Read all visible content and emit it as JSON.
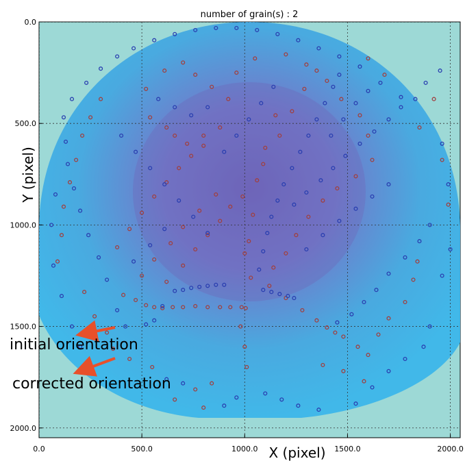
{
  "chart_data": {
    "type": "scatter",
    "title": "number of grain(s) : 2",
    "xlabel": "X (pixel)",
    "ylabel": "Y (pixel)",
    "xlim": [
      0,
      2048
    ],
    "ylim": [
      2048,
      0
    ],
    "grid": true,
    "x_ticks": [
      "0.0",
      "500.0",
      "1000.0",
      "1500.0",
      "2000.0"
    ],
    "y_ticks": [
      "0.0",
      "500.0",
      "1000.0",
      "1500.0",
      "2000.0"
    ],
    "background_image": "detector diffraction image (blue/purple intensity)",
    "marker": "open circle",
    "series": [
      {
        "color": "#a04040",
        "points": [
          [
            410,
            1345
          ],
          [
            470,
            1370
          ],
          [
            520,
            1395
          ],
          [
            560,
            1405
          ],
          [
            600,
            1410
          ],
          [
            650,
            1405
          ],
          [
            700,
            1405
          ],
          [
            760,
            1400
          ],
          [
            820,
            1405
          ],
          [
            880,
            1405
          ],
          [
            930,
            1405
          ],
          [
            985,
            1405
          ],
          [
            1005,
            1410
          ],
          [
            1000,
            1140
          ],
          [
            1020,
            1080
          ],
          [
            1040,
            950
          ],
          [
            1060,
            780
          ],
          [
            1100,
            620
          ],
          [
            1150,
            460
          ],
          [
            880,
            520
          ],
          [
            800,
            560
          ],
          [
            720,
            600
          ],
          [
            660,
            560
          ],
          [
            620,
            520
          ],
          [
            540,
            470
          ],
          [
            520,
            330
          ],
          [
            610,
            240
          ],
          [
            700,
            200
          ],
          [
            760,
            260
          ],
          [
            840,
            320
          ],
          [
            920,
            380
          ],
          [
            960,
            250
          ],
          [
            1050,
            180
          ],
          [
            1200,
            160
          ],
          [
            1300,
            210
          ],
          [
            1400,
            290
          ],
          [
            1470,
            380
          ],
          [
            1560,
            460
          ],
          [
            1600,
            560
          ],
          [
            1620,
            680
          ],
          [
            1540,
            760
          ],
          [
            1450,
            820
          ],
          [
            1380,
            880
          ],
          [
            1310,
            960
          ],
          [
            1250,
            1050
          ],
          [
            1200,
            1140
          ],
          [
            1140,
            1210
          ],
          [
            1350,
            1470
          ],
          [
            1400,
            1505
          ],
          [
            1440,
            1530
          ],
          [
            1480,
            1550
          ],
          [
            1550,
            1600
          ],
          [
            1600,
            1640
          ],
          [
            1650,
            1540
          ],
          [
            1700,
            1460
          ],
          [
            1780,
            1380
          ],
          [
            1820,
            1270
          ],
          [
            1840,
            1180
          ],
          [
            300,
            380
          ],
          [
            250,
            470
          ],
          [
            210,
            560
          ],
          [
            180,
            680
          ],
          [
            150,
            790
          ],
          [
            120,
            910
          ],
          [
            110,
            1050
          ],
          [
            90,
            1180
          ],
          [
            380,
            1110
          ],
          [
            440,
            1020
          ],
          [
            500,
            940
          ],
          [
            560,
            860
          ],
          [
            620,
            790
          ],
          [
            680,
            720
          ],
          [
            740,
            660
          ],
          [
            800,
            610
          ],
          [
            860,
            850
          ],
          [
            780,
            930
          ],
          [
            700,
            1010
          ],
          [
            640,
            1090
          ],
          [
            560,
            1170
          ],
          [
            500,
            1250
          ],
          [
            1030,
            1260
          ],
          [
            1120,
            1300
          ],
          [
            1200,
            1360
          ],
          [
            1280,
            1420
          ],
          [
            700,
            1200
          ],
          [
            620,
            1280
          ],
          [
            760,
            1120
          ],
          [
            820,
            1050
          ],
          [
            880,
            980
          ],
          [
            930,
            910
          ],
          [
            990,
            860
          ],
          [
            1090,
            700
          ],
          [
            1170,
            560
          ],
          [
            1230,
            440
          ],
          [
            1290,
            330
          ],
          [
            1350,
            240
          ],
          [
            980,
            1500
          ],
          [
            1000,
            1600
          ],
          [
            1010,
            1700
          ],
          [
            840,
            1780
          ],
          [
            760,
            1810
          ],
          [
            660,
            1860
          ],
          [
            800,
            1900
          ],
          [
            1580,
            1770
          ],
          [
            1480,
            1720
          ],
          [
            1380,
            1690
          ],
          [
            550,
            1700
          ],
          [
            440,
            1660
          ],
          [
            360,
            1610
          ],
          [
            1850,
            520
          ],
          [
            1920,
            380
          ],
          [
            1960,
            680
          ],
          [
            1990,
            900
          ],
          [
            1680,
            260
          ],
          [
            1600,
            180
          ],
          [
            330,
            1530
          ],
          [
            270,
            1450
          ],
          [
            220,
            1330
          ]
        ]
      },
      {
        "color": "#2a3fb0",
        "points": [
          [
            520,
            1490
          ],
          [
            560,
            1470
          ],
          [
            600,
            1400
          ],
          [
            660,
            1325
          ],
          [
            700,
            1320
          ],
          [
            740,
            1310
          ],
          [
            780,
            1305
          ],
          [
            820,
            1300
          ],
          [
            860,
            1295
          ],
          [
            900,
            1295
          ],
          [
            1090,
            1320
          ],
          [
            1130,
            1330
          ],
          [
            1170,
            1340
          ],
          [
            1210,
            1350
          ],
          [
            1240,
            1360
          ],
          [
            1070,
            1220
          ],
          [
            1090,
            1130
          ],
          [
            1110,
            1040
          ],
          [
            1130,
            960
          ],
          [
            1160,
            880
          ],
          [
            1190,
            800
          ],
          [
            1230,
            720
          ],
          [
            1270,
            640
          ],
          [
            1310,
            560
          ],
          [
            1350,
            480
          ],
          [
            1390,
            400
          ],
          [
            1430,
            320
          ],
          [
            1460,
            260
          ],
          [
            1240,
            900
          ],
          [
            1300,
            840
          ],
          [
            1370,
            780
          ],
          [
            1430,
            720
          ],
          [
            1490,
            660
          ],
          [
            1560,
            600
          ],
          [
            1630,
            540
          ],
          [
            1700,
            480
          ],
          [
            1760,
            420
          ],
          [
            1830,
            380
          ],
          [
            1880,
            300
          ],
          [
            1950,
            240
          ],
          [
            1900,
            1000
          ],
          [
            1850,
            1080
          ],
          [
            1780,
            1160
          ],
          [
            1700,
            1240
          ],
          [
            1640,
            1320
          ],
          [
            1580,
            1380
          ],
          [
            1520,
            1440
          ],
          [
            1450,
            1480
          ],
          [
            1900,
            1500
          ],
          [
            1870,
            1600
          ],
          [
            1780,
            1660
          ],
          [
            1700,
            1720
          ],
          [
            1620,
            1800
          ],
          [
            1540,
            1880
          ],
          [
            1360,
            1910
          ],
          [
            1260,
            1890
          ],
          [
            1180,
            1860
          ],
          [
            1100,
            1830
          ],
          [
            900,
            1890
          ],
          [
            960,
            1850
          ],
          [
            700,
            1780
          ],
          [
            620,
            1760
          ],
          [
            420,
            1500
          ],
          [
            380,
            1420
          ],
          [
            330,
            1270
          ],
          [
            290,
            1160
          ],
          [
            240,
            1050
          ],
          [
            200,
            930
          ],
          [
            170,
            820
          ],
          [
            140,
            700
          ],
          [
            130,
            590
          ],
          [
            120,
            470
          ],
          [
            160,
            380
          ],
          [
            230,
            300
          ],
          [
            300,
            230
          ],
          [
            380,
            170
          ],
          [
            460,
            130
          ],
          [
            560,
            90
          ],
          [
            660,
            60
          ],
          [
            760,
            40
          ],
          [
            860,
            30
          ],
          [
            960,
            30
          ],
          [
            1060,
            40
          ],
          [
            1160,
            60
          ],
          [
            1260,
            90
          ],
          [
            1360,
            130
          ],
          [
            1460,
            170
          ],
          [
            1560,
            220
          ],
          [
            1660,
            300
          ],
          [
            1760,
            370
          ],
          [
            400,
            560
          ],
          [
            470,
            640
          ],
          [
            540,
            720
          ],
          [
            610,
            800
          ],
          [
            680,
            880
          ],
          [
            750,
            960
          ],
          [
            820,
            1040
          ],
          [
            460,
            1180
          ],
          [
            540,
            1100
          ],
          [
            610,
            1020
          ],
          [
            900,
            640
          ],
          [
            960,
            560
          ],
          [
            1020,
            480
          ],
          [
            1080,
            400
          ],
          [
            1140,
            320
          ],
          [
            580,
            380
          ],
          [
            660,
            420
          ],
          [
            740,
            460
          ],
          [
            820,
            420
          ],
          [
            1420,
            560
          ],
          [
            1480,
            480
          ],
          [
            1540,
            400
          ],
          [
            1600,
            340
          ],
          [
            2000,
            1120
          ],
          [
            1960,
            1250
          ],
          [
            1990,
            800
          ],
          [
            1960,
            600
          ],
          [
            1300,
            1120
          ],
          [
            1380,
            1050
          ],
          [
            1460,
            980
          ],
          [
            1540,
            920
          ],
          [
            1620,
            860
          ],
          [
            1700,
            800
          ],
          [
            200,
            1600
          ],
          [
            160,
            1500
          ],
          [
            110,
            1350
          ],
          [
            70,
            1200
          ],
          [
            60,
            1000
          ],
          [
            80,
            850
          ]
        ]
      }
    ],
    "annotations": [
      {
        "text": "initial orientation",
        "arrow_color": "#e8502a"
      },
      {
        "text": "corrected orientation",
        "arrow_color": "#e8502a"
      }
    ]
  }
}
